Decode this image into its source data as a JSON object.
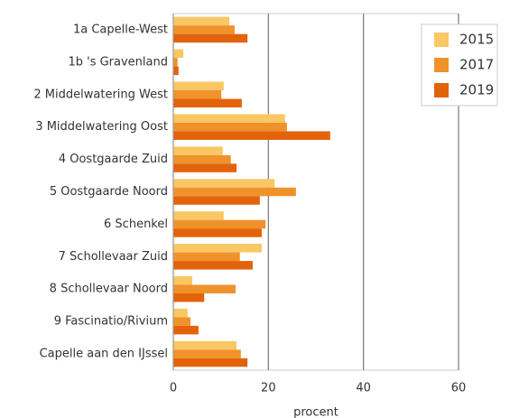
{
  "chart_data": {
    "type": "barh",
    "x_label": "procent",
    "categories": [
      "1a Capelle-West",
      "1b 's Gravenland",
      "2 Middelwatering West",
      "3 Middelwatering Oost",
      "4 Oostgaarde Zuid",
      "5 Oostgaarde Noord",
      "6 Schenkel",
      "7 Schollevaar Zuid",
      "8 Schollevaar Noord",
      "9 Fascinatio/Rivium",
      "Capelle aan den IJssel"
    ],
    "series": [
      {
        "name": "2015",
        "color": "#f9c763",
        "values": [
          11.8,
          2.1,
          10.6,
          23.5,
          10.4,
          21.3,
          10.6,
          18.6,
          4.0,
          3.0,
          13.3
        ]
      },
      {
        "name": "2017",
        "color": "#f0922c",
        "values": [
          12.9,
          0.9,
          10.1,
          23.9,
          12.1,
          25.8,
          19.4,
          14.0,
          13.1,
          3.6,
          14.2
        ]
      },
      {
        "name": "2019",
        "color": "#e3630b",
        "values": [
          15.6,
          1.1,
          14.4,
          33.0,
          13.3,
          18.2,
          18.6,
          16.7,
          6.5,
          5.3,
          15.6
        ]
      }
    ],
    "xlim": [
      0,
      60
    ],
    "xticks": [
      0,
      20,
      40,
      60
    ],
    "grid": true,
    "legend": "upper right"
  }
}
